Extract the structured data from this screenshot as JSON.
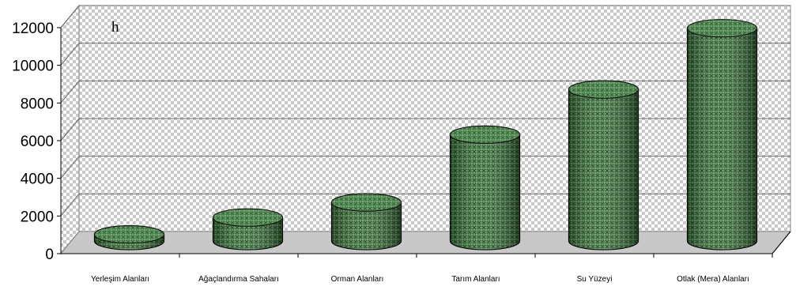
{
  "chart_data": {
    "type": "bar",
    "style": "3d-cylinder",
    "categories": [
      "Yerleşim Alanları",
      "Ağaçlandırma Sahaları",
      "Orman Alanları",
      "Tarım Alanları",
      "Su Yüzeyi",
      "Otlak (Mera) Alanları"
    ],
    "values": [
      350,
      1250,
      2050,
      5650,
      8050,
      11300
    ],
    "ylim": [
      0,
      12000
    ],
    "yticks": [
      0,
      2000,
      4000,
      6000,
      8000,
      10000,
      12000
    ],
    "annotation": "h",
    "grid": true,
    "legend": "none",
    "colors": {
      "bar": "#3f7a3f",
      "bar_dark": "#1f4a1f",
      "bar_light": "#8fc48f",
      "wall_checker": "#c9c9c9",
      "floor": "#c8c8c8"
    }
  }
}
